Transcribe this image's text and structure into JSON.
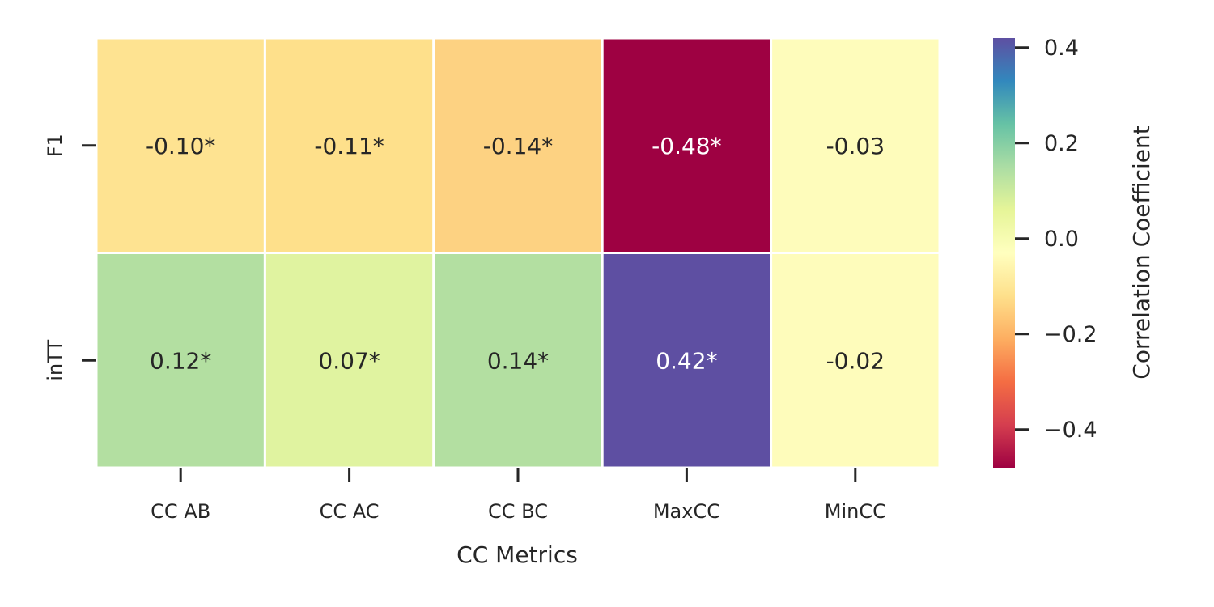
{
  "chart_data": {
    "type": "heatmap",
    "title": "",
    "xlabel": "CC Metrics",
    "ylabel": "",
    "x_categories": [
      "CC AB",
      "CC AC",
      "CC BC",
      "MaxCC",
      "MinCC"
    ],
    "y_categories": [
      "F1",
      "inTT"
    ],
    "values": [
      [
        -0.1,
        -0.11,
        -0.14,
        -0.48,
        -0.03
      ],
      [
        0.12,
        0.07,
        0.14,
        0.42,
        -0.02
      ]
    ],
    "annotations": [
      [
        "-0.10*",
        "-0.11*",
        "-0.14*",
        "-0.48*",
        "-0.03"
      ],
      [
        "0.12*",
        "0.07*",
        "0.14*",
        "0.42*",
        "-0.02"
      ]
    ],
    "colormap": "Spectral",
    "colorbar": {
      "label": "Correlation Coefficient",
      "range": [
        -0.48,
        0.42
      ],
      "ticks": [
        0.4,
        0.2,
        0.0,
        -0.2,
        -0.4
      ],
      "tick_labels": [
        "0.4",
        "0.2",
        "0.0",
        "−0.2",
        "−0.4"
      ]
    },
    "cell_colors": [
      [
        "#fee391",
        "#fee08b",
        "#fdd282",
        "#9e0142",
        "#fefcbb"
      ],
      [
        "#b3dfa1",
        "#e0f3a0",
        "#b3dfa1",
        "#5e4fa2",
        "#fefcbb"
      ]
    ],
    "text_colors": {
      "dark": "#262626",
      "light": "#ffffff"
    }
  }
}
